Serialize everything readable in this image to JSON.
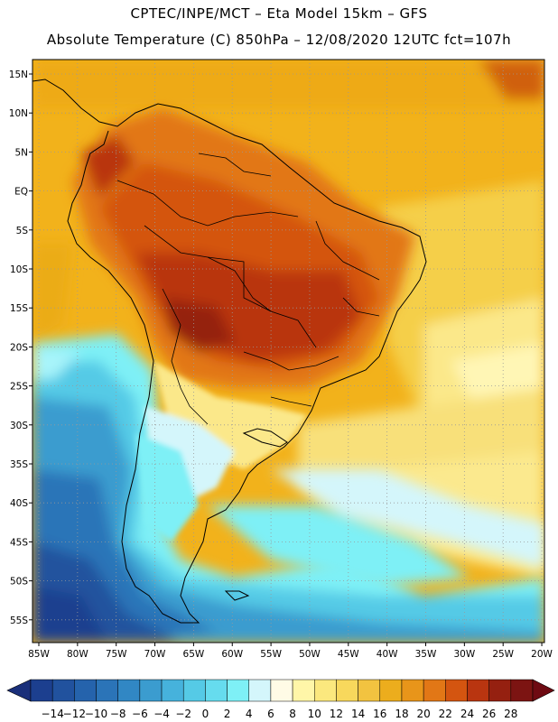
{
  "header": {
    "line1": "CPTEC/INPE/MCT –  Eta Model 15km – GFS",
    "line2": "Absolute Temperature (C) 850hPa – 12/08/2020 12UTC fct=107h"
  },
  "map": {
    "lat_labels": [
      "15N",
      "10N",
      "5N",
      "EQ",
      "5S",
      "10S",
      "15S",
      "20S",
      "25S",
      "30S",
      "35S",
      "40S",
      "45S",
      "50S",
      "55S"
    ],
    "lon_labels": [
      "85W",
      "80W",
      "75W",
      "70W",
      "65W",
      "60W",
      "55W",
      "50W",
      "45W",
      "40W",
      "35W",
      "30W",
      "25W",
      "20W"
    ],
    "grid": "dotted"
  },
  "legend": {
    "labels": [
      "-14",
      "-12",
      "-10",
      "-8",
      "-6",
      "-4",
      "-2",
      "0",
      "2",
      "4",
      "6",
      "8",
      "10",
      "12",
      "14",
      "16",
      "18",
      "20",
      "22",
      "24",
      "26",
      "28"
    ],
    "colors": [
      "#1c3f8f",
      "#21529e",
      "#2563ac",
      "#2b74b8",
      "#3187c4",
      "#3b9ccf",
      "#46b2dc",
      "#55cae6",
      "#66dcee",
      "#7ef0f6",
      "#d4f6fb",
      "#fffbe6",
      "#fff6a8",
      "#fbe87e",
      "#f8d85c",
      "#f2c340",
      "#ecad1d",
      "#e8951a",
      "#e27716",
      "#d45510",
      "#b93510",
      "#952010",
      "#7c1412"
    ],
    "low_arrow_color": "#1a2f7a",
    "high_arrow_color": "#6e0a12"
  },
  "colors": {
    "sea_warm": "#f2b21b",
    "sea_mid": "#f5d04a",
    "sea_cool": "#fbe88a",
    "cold_core": "#2b6fb5",
    "land_hot": "#c04d12",
    "coastline": "#000000"
  }
}
